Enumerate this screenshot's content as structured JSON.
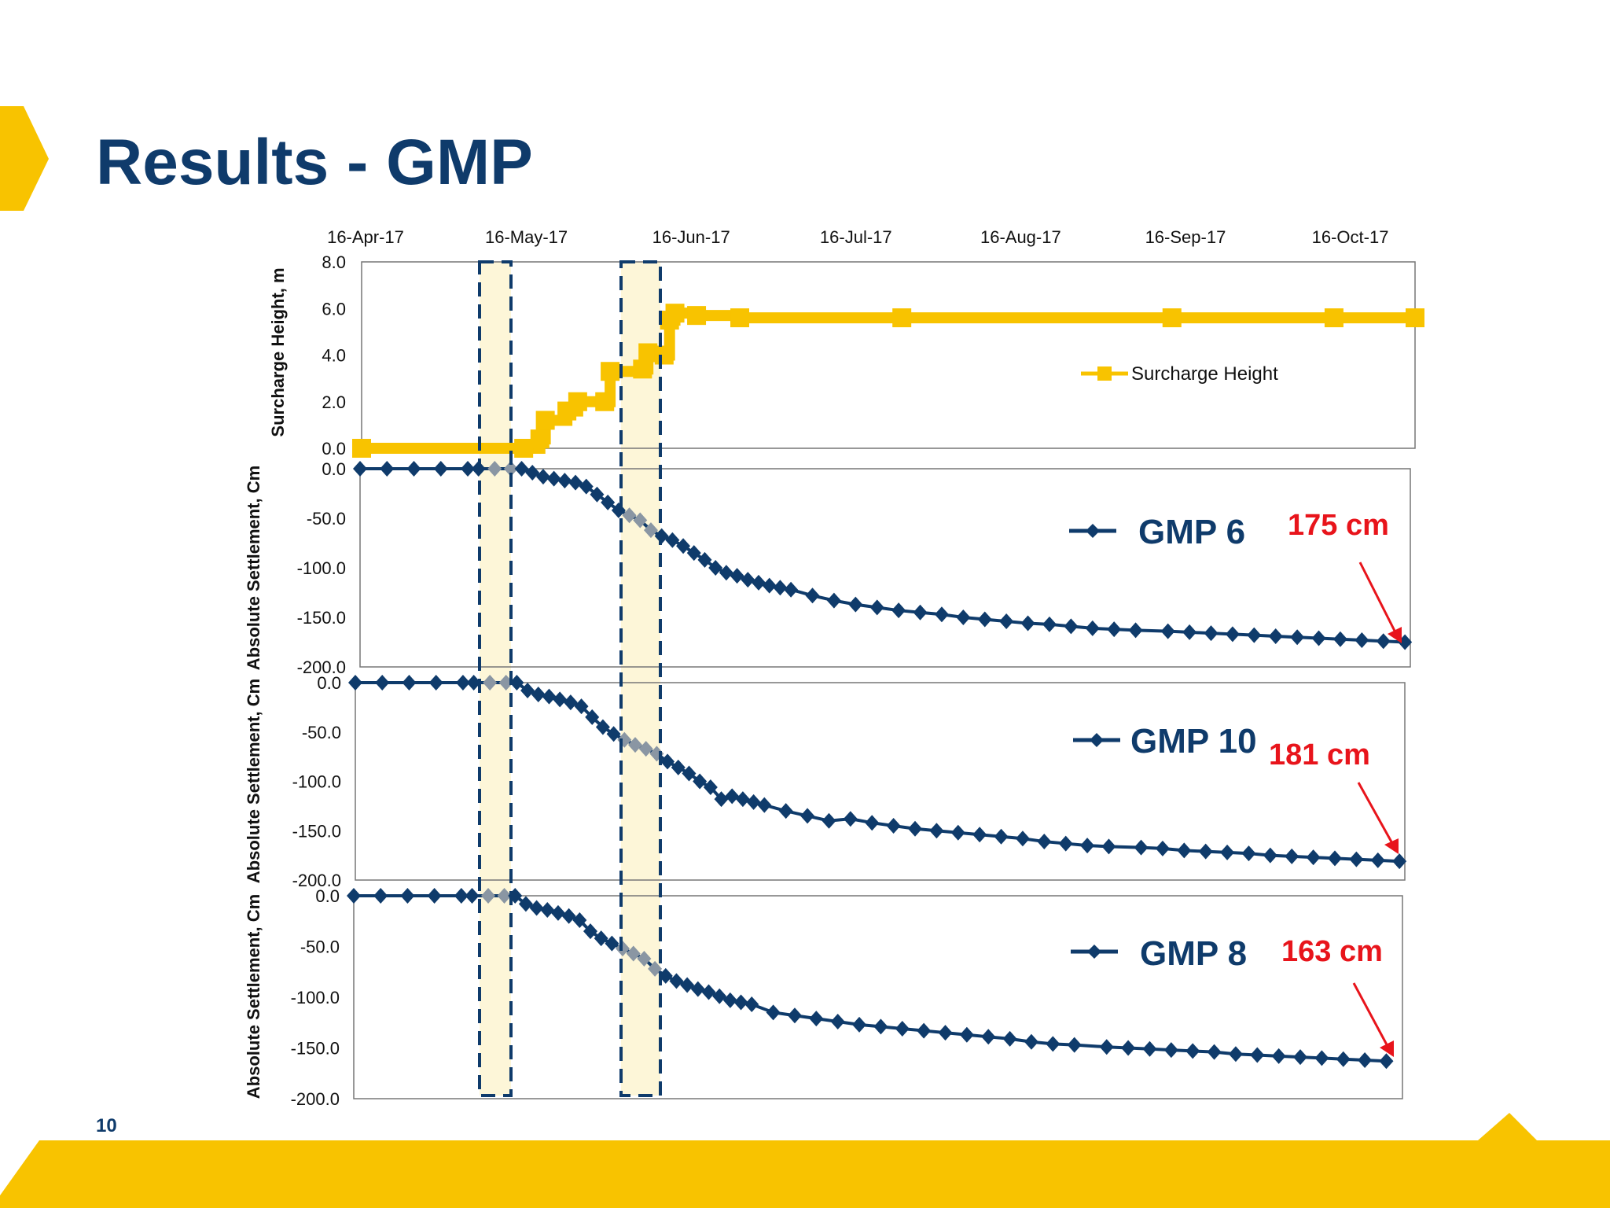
{
  "slide": {
    "title": "Results - GMP",
    "page_number": "10",
    "colors": {
      "brand_yellow": "#f8c300",
      "title_blue": "#0f3b6b",
      "series_navy": "#0f3b6b",
      "annotation_red": "#e8141b"
    }
  },
  "chart_data": [
    {
      "type": "line",
      "id": "surcharge",
      "ylabel": "Surcharge Height, m",
      "ylim": [
        0,
        8
      ],
      "yticks": [
        "8.0",
        "6.0",
        "4.0",
        "2.0",
        "0.0"
      ],
      "xticks": [
        "16-Apr-17",
        "16-May-17",
        "16-Jun-17",
        "16-Jul-17",
        "16-Aug-17",
        "16-Sep-17",
        "16-Oct-17"
      ],
      "legend": "Surcharge Height",
      "series": [
        {
          "name": "Surcharge Height",
          "color": "#f8c300",
          "points": [
            [
              0,
              0
            ],
            [
              30,
              0
            ],
            [
              33,
              0.4
            ],
            [
              34,
              1.2
            ],
            [
              38,
              1.6
            ],
            [
              40,
              2.0
            ],
            [
              45,
              2.0
            ],
            [
              46,
              3.3
            ],
            [
              52,
              3.4
            ],
            [
              53,
              4.1
            ],
            [
              56,
              4.0
            ],
            [
              57,
              5.5
            ],
            [
              58,
              5.8
            ],
            [
              62,
              5.7
            ],
            [
              70,
              5.6
            ],
            [
              100,
              5.6
            ],
            [
              150,
              5.6
            ],
            [
              180,
              5.6
            ],
            [
              195,
              5.6
            ]
          ]
        }
      ]
    },
    {
      "type": "line",
      "id": "gmp6",
      "ylabel": "Absolute Settlement, Cm",
      "ylim": [
        -200,
        0
      ],
      "yticks": [
        "0.0",
        "-50.0",
        "-100.0",
        "-150.0",
        "-200.0"
      ],
      "series_name": "GMP 6",
      "final_settlement_label": "175 cm",
      "series": [
        {
          "name": "GMP 6",
          "color": "#0f3b6b",
          "points": [
            [
              0,
              0
            ],
            [
              5,
              0
            ],
            [
              10,
              0
            ],
            [
              15,
              0
            ],
            [
              20,
              0
            ],
            [
              22,
              0
            ],
            [
              25,
              0
            ],
            [
              28,
              0
            ],
            [
              30,
              0
            ],
            [
              32,
              -4
            ],
            [
              34,
              -8
            ],
            [
              36,
              -10
            ],
            [
              38,
              -12
            ],
            [
              40,
              -14
            ],
            [
              42,
              -18
            ],
            [
              44,
              -26
            ],
            [
              46,
              -34
            ],
            [
              48,
              -42
            ],
            [
              50,
              -47
            ],
            [
              52,
              -52
            ],
            [
              54,
              -62
            ],
            [
              56,
              -68
            ],
            [
              58,
              -72
            ],
            [
              60,
              -78
            ],
            [
              62,
              -85
            ],
            [
              64,
              -92
            ],
            [
              66,
              -100
            ],
            [
              68,
              -105
            ],
            [
              70,
              -108
            ],
            [
              72,
              -112
            ],
            [
              74,
              -115
            ],
            [
              76,
              -118
            ],
            [
              78,
              -120
            ],
            [
              80,
              -122
            ],
            [
              84,
              -128
            ],
            [
              88,
              -133
            ],
            [
              92,
              -137
            ],
            [
              96,
              -140
            ],
            [
              100,
              -143
            ],
            [
              104,
              -145
            ],
            [
              108,
              -147
            ],
            [
              112,
              -150
            ],
            [
              116,
              -152
            ],
            [
              120,
              -154
            ],
            [
              124,
              -156
            ],
            [
              128,
              -157
            ],
            [
              132,
              -159
            ],
            [
              136,
              -161
            ],
            [
              140,
              -162
            ],
            [
              144,
              -163
            ],
            [
              150,
              -164
            ],
            [
              154,
              -165
            ],
            [
              158,
              -166
            ],
            [
              162,
              -167
            ],
            [
              166,
              -168
            ],
            [
              170,
              -169
            ],
            [
              174,
              -170
            ],
            [
              178,
              -171
            ],
            [
              182,
              -172
            ],
            [
              186,
              -173
            ],
            [
              190,
              -174
            ],
            [
              194,
              -175
            ]
          ]
        }
      ]
    },
    {
      "type": "line",
      "id": "gmp10",
      "ylabel": "Absolute Settlement, Cm",
      "ylim": [
        -200,
        0
      ],
      "yticks": [
        "0.0",
        "-50.0",
        "-100.0",
        "-150.0",
        "-200.0"
      ],
      "series_name": "GMP 10",
      "final_settlement_label": "181 cm",
      "series": [
        {
          "name": "GMP 10",
          "color": "#0f3b6b",
          "points": [
            [
              0,
              0
            ],
            [
              5,
              0
            ],
            [
              10,
              0
            ],
            [
              15,
              0
            ],
            [
              20,
              0
            ],
            [
              22,
              0
            ],
            [
              25,
              0
            ],
            [
              28,
              0
            ],
            [
              30,
              0
            ],
            [
              32,
              -8
            ],
            [
              34,
              -12
            ],
            [
              36,
              -14
            ],
            [
              38,
              -17
            ],
            [
              40,
              -20
            ],
            [
              42,
              -24
            ],
            [
              44,
              -35
            ],
            [
              46,
              -45
            ],
            [
              48,
              -52
            ],
            [
              50,
              -58
            ],
            [
              52,
              -63
            ],
            [
              54,
              -67
            ],
            [
              56,
              -72
            ],
            [
              58,
              -80
            ],
            [
              60,
              -86
            ],
            [
              62,
              -92
            ],
            [
              64,
              -100
            ],
            [
              66,
              -106
            ],
            [
              68,
              -118
            ],
            [
              70,
              -115
            ],
            [
              72,
              -118
            ],
            [
              74,
              -121
            ],
            [
              76,
              -124
            ],
            [
              80,
              -130
            ],
            [
              84,
              -135
            ],
            [
              88,
              -140
            ],
            [
              92,
              -138
            ],
            [
              96,
              -142
            ],
            [
              100,
              -145
            ],
            [
              104,
              -148
            ],
            [
              108,
              -150
            ],
            [
              112,
              -152
            ],
            [
              116,
              -154
            ],
            [
              120,
              -156
            ],
            [
              124,
              -158
            ],
            [
              128,
              -161
            ],
            [
              132,
              -163
            ],
            [
              136,
              -165
            ],
            [
              140,
              -166
            ],
            [
              146,
              -167
            ],
            [
              150,
              -168
            ],
            [
              154,
              -170
            ],
            [
              158,
              -171
            ],
            [
              162,
              -172
            ],
            [
              166,
              -173
            ],
            [
              170,
              -175
            ],
            [
              174,
              -176
            ],
            [
              178,
              -177
            ],
            [
              182,
              -178
            ],
            [
              186,
              -179
            ],
            [
              190,
              -180
            ],
            [
              194,
              -181
            ]
          ]
        }
      ]
    },
    {
      "type": "line",
      "id": "gmp8",
      "ylabel": "Absolute Settlement, Cm",
      "ylim": [
        -200,
        0
      ],
      "yticks": [
        "0.0",
        "-50.0",
        "-100.0",
        "-150.0",
        "-200.0"
      ],
      "series_name": "GMP 8",
      "final_settlement_label": "163 cm",
      "series": [
        {
          "name": "GMP 8",
          "color": "#0f3b6b",
          "points": [
            [
              0,
              0
            ],
            [
              5,
              0
            ],
            [
              10,
              0
            ],
            [
              15,
              0
            ],
            [
              20,
              0
            ],
            [
              22,
              0
            ],
            [
              25,
              0
            ],
            [
              28,
              0
            ],
            [
              30,
              0
            ],
            [
              32,
              -8
            ],
            [
              34,
              -12
            ],
            [
              36,
              -14
            ],
            [
              38,
              -17
            ],
            [
              40,
              -20
            ],
            [
              42,
              -24
            ],
            [
              44,
              -35
            ],
            [
              46,
              -42
            ],
            [
              48,
              -47
            ],
            [
              50,
              -52
            ],
            [
              52,
              -57
            ],
            [
              54,
              -62
            ],
            [
              56,
              -72
            ],
            [
              58,
              -79
            ],
            [
              60,
              -84
            ],
            [
              62,
              -88
            ],
            [
              64,
              -92
            ],
            [
              66,
              -95
            ],
            [
              68,
              -99
            ],
            [
              70,
              -103
            ],
            [
              72,
              -105
            ],
            [
              74,
              -107
            ],
            [
              78,
              -115
            ],
            [
              82,
              -118
            ],
            [
              86,
              -121
            ],
            [
              90,
              -124
            ],
            [
              94,
              -127
            ],
            [
              98,
              -129
            ],
            [
              102,
              -131
            ],
            [
              106,
              -133
            ],
            [
              110,
              -135
            ],
            [
              114,
              -137
            ],
            [
              118,
              -139
            ],
            [
              122,
              -141
            ],
            [
              126,
              -144
            ],
            [
              130,
              -146
            ],
            [
              134,
              -147
            ],
            [
              140,
              -149
            ],
            [
              144,
              -150
            ],
            [
              148,
              -151
            ],
            [
              152,
              -152
            ],
            [
              156,
              -153
            ],
            [
              160,
              -154
            ],
            [
              164,
              -156
            ],
            [
              168,
              -157
            ],
            [
              172,
              -158
            ],
            [
              176,
              -159
            ],
            [
              180,
              -160
            ],
            [
              184,
              -161
            ],
            [
              188,
              -162
            ],
            [
              192,
              -163
            ]
          ]
        }
      ]
    }
  ]
}
